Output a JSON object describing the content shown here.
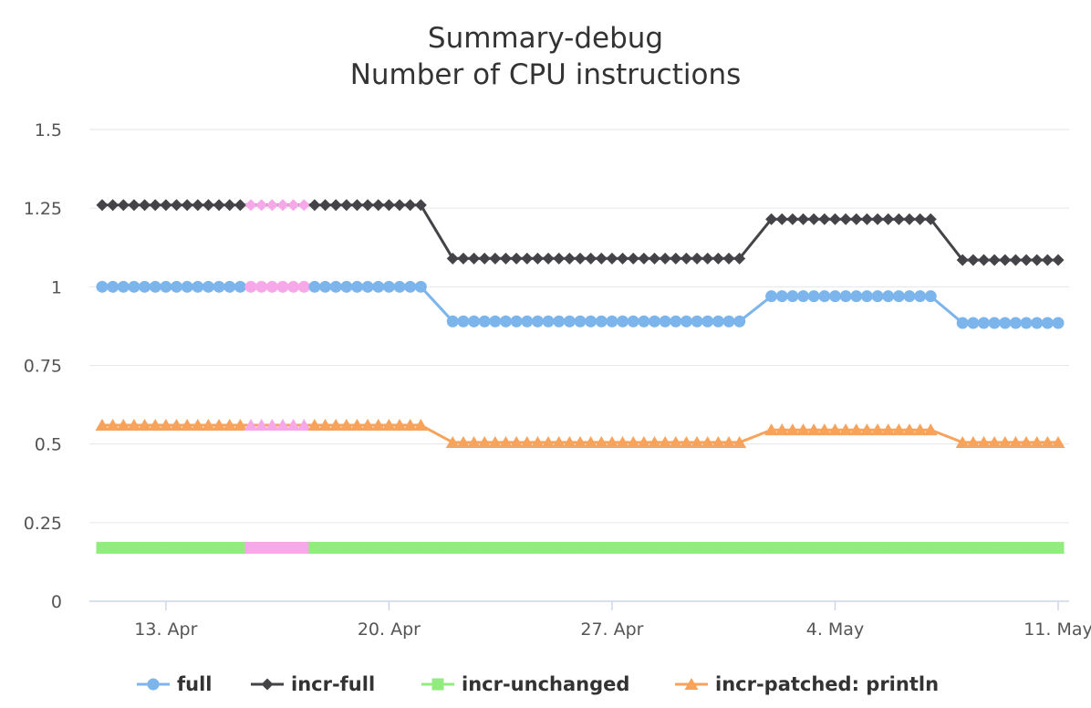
{
  "chart_data": {
    "type": "line",
    "title": "Summary-debug",
    "subtitle": "Number of CPU instructions",
    "x_start": "2020-04-11",
    "x_end": "2020-05-11",
    "ylim": [
      0,
      1.5
    ],
    "yticks": [
      "0",
      "0.25",
      "0.5",
      "0.75",
      "1",
      "1.25",
      "1.5"
    ],
    "xticks": [
      {
        "date": "2020-04-13",
        "label": "13. Apr"
      },
      {
        "date": "2020-04-20",
        "label": "20. Apr"
      },
      {
        "date": "2020-04-27",
        "label": "27. Apr"
      },
      {
        "date": "2020-05-04",
        "label": "4. May"
      },
      {
        "date": "2020-05-11",
        "label": "11. May"
      }
    ],
    "grid": true,
    "legend_position": "bottom",
    "highlight_color": "#f7a8e8",
    "highlight_dates": [
      "2020-04-16",
      "2020-04-17"
    ],
    "series": [
      {
        "name": "full",
        "color": "#7cb5ec",
        "marker": "circle",
        "segments": [
          {
            "from": "2020-04-11",
            "to": "2020-04-21",
            "value": 1.0
          },
          {
            "from": "2020-04-22",
            "to": "2020-05-01",
            "value": 0.89
          },
          {
            "from": "2020-05-02",
            "to": "2020-05-07",
            "value": 0.97
          },
          {
            "from": "2020-05-08",
            "to": "2020-05-11",
            "value": 0.885
          }
        ]
      },
      {
        "name": "incr-full",
        "color": "#434348",
        "marker": "diamond",
        "segments": [
          {
            "from": "2020-04-11",
            "to": "2020-04-21",
            "value": 1.26
          },
          {
            "from": "2020-04-22",
            "to": "2020-05-01",
            "value": 1.09
          },
          {
            "from": "2020-05-02",
            "to": "2020-05-07",
            "value": 1.215
          },
          {
            "from": "2020-05-08",
            "to": "2020-05-11",
            "value": 1.085
          }
        ]
      },
      {
        "name": "incr-unchanged",
        "color": "#90ed7d",
        "marker": "square",
        "segments": [
          {
            "from": "2020-04-11",
            "to": "2020-05-11",
            "value": 0.17
          }
        ]
      },
      {
        "name": "incr-patched: println",
        "color": "#f7a35c",
        "marker": "triangle",
        "segments": [
          {
            "from": "2020-04-11",
            "to": "2020-04-21",
            "value": 0.56
          },
          {
            "from": "2020-04-22",
            "to": "2020-05-01",
            "value": 0.505
          },
          {
            "from": "2020-05-02",
            "to": "2020-05-07",
            "value": 0.545
          },
          {
            "from": "2020-05-08",
            "to": "2020-05-11",
            "value": 0.505
          }
        ]
      }
    ]
  }
}
